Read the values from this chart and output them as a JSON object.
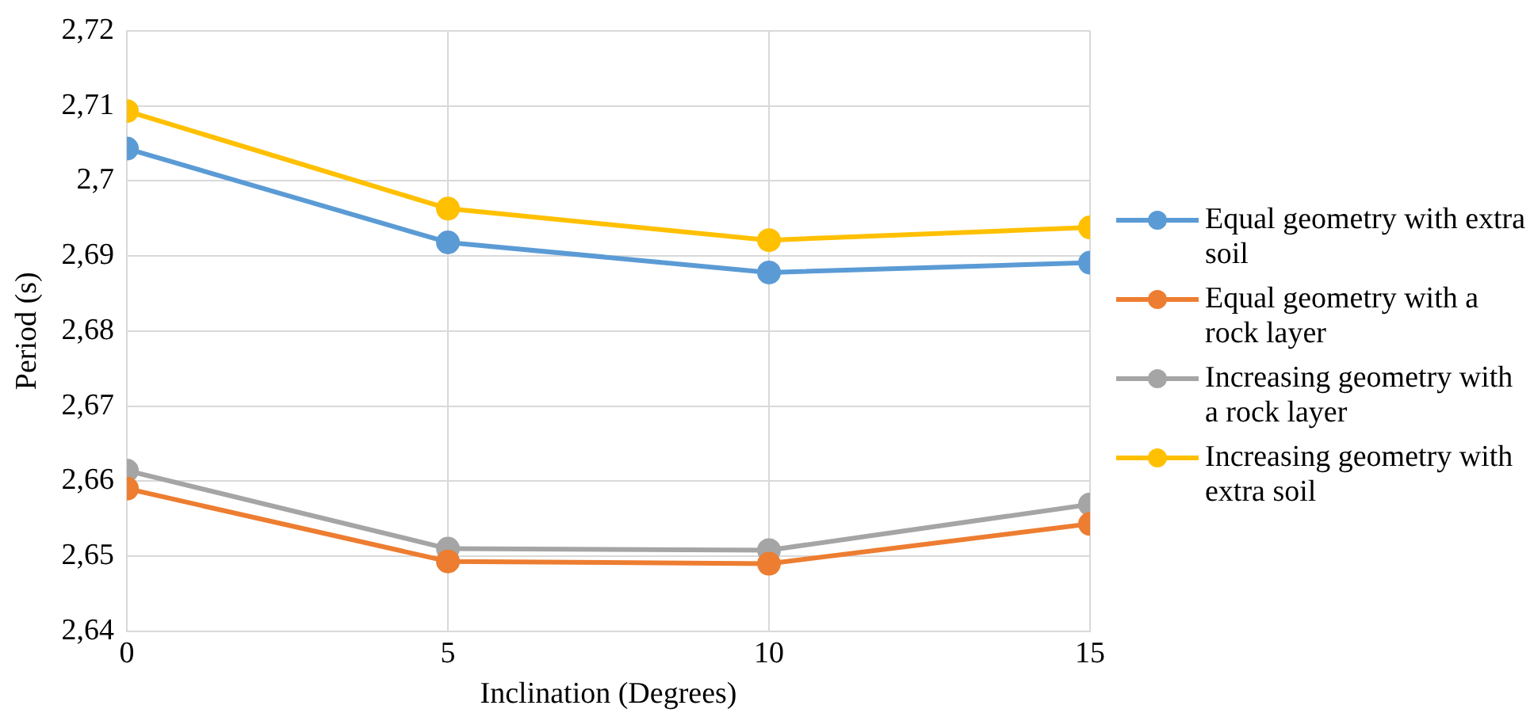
{
  "chart_data": {
    "type": "line",
    "xlabel": "Inclination (Degrees)",
    "ylabel": "Period (s)",
    "x": [
      0,
      5,
      10,
      15
    ],
    "xlim": [
      0,
      15
    ],
    "xticks": [
      0,
      5,
      10,
      15
    ],
    "ylim": [
      2.64,
      2.72
    ],
    "yticks": [
      {
        "value": 2.64,
        "label": "2,64"
      },
      {
        "value": 2.65,
        "label": "2,65"
      },
      {
        "value": 2.66,
        "label": "2,66"
      },
      {
        "value": 2.67,
        "label": "2,67"
      },
      {
        "value": 2.68,
        "label": "2,68"
      },
      {
        "value": 2.69,
        "label": "2,69"
      },
      {
        "value": 2.7,
        "label": "2,7"
      },
      {
        "value": 2.71,
        "label": "2,71"
      },
      {
        "value": 2.72,
        "label": "2,72"
      }
    ],
    "series": [
      {
        "name": "Equal geometry with extra soil",
        "color": "#5b9bd5",
        "values": [
          2.7043,
          2.6918,
          2.6878,
          2.6891
        ]
      },
      {
        "name": "Equal geometry with a rock layer",
        "color": "#ed7d31",
        "values": [
          2.659,
          2.6493,
          2.649,
          2.6543
        ]
      },
      {
        "name": "Increasing geometry with a rock layer",
        "color": "#a5a5a5",
        "values": [
          2.6614,
          2.651,
          2.6508,
          2.6569
        ]
      },
      {
        "name": "Increasing geometry with extra soil",
        "color": "#ffc000",
        "values": [
          2.7093,
          2.6963,
          2.6921,
          2.6938
        ]
      }
    ],
    "grid": true,
    "legend": "right",
    "marker": "circle",
    "line_style": "solid"
  }
}
